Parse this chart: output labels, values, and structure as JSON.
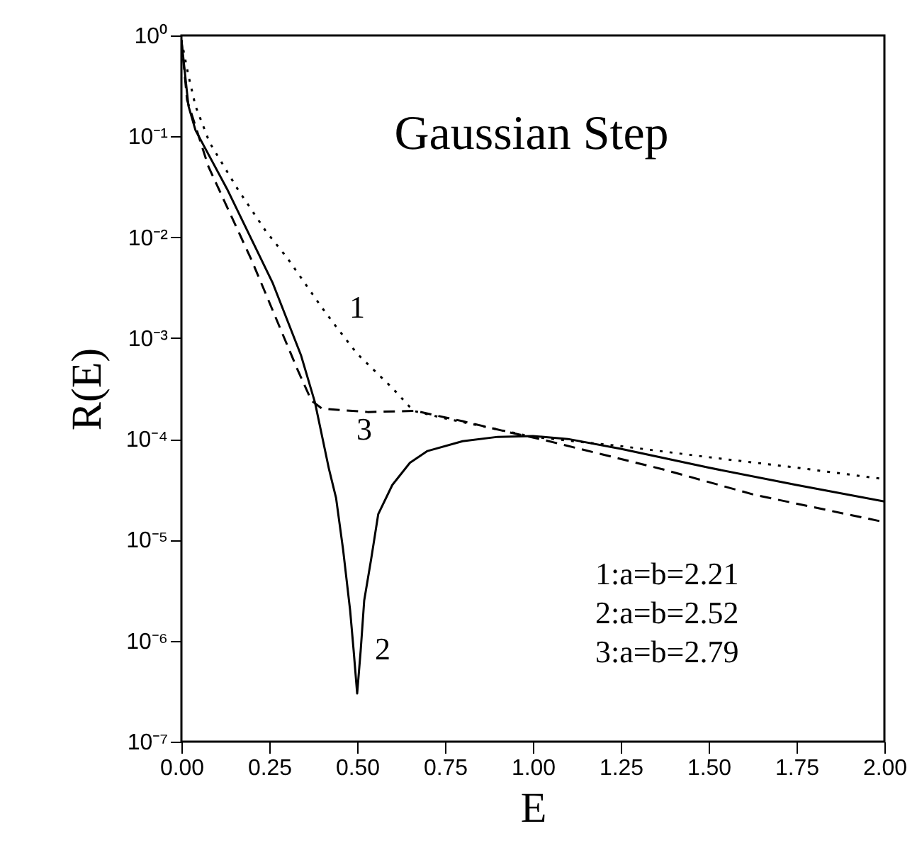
{
  "chart_data": {
    "type": "line",
    "title": "Gaussian Step",
    "xlabel": "E",
    "ylabel": "R(E)",
    "log": "y",
    "xlim": [
      0,
      2
    ],
    "xticks": [
      {
        "value": 0,
        "label": "0.00"
      },
      {
        "value": 0.25,
        "label": "0.25"
      },
      {
        "value": 0.5,
        "label": "0.50"
      },
      {
        "value": 0.75,
        "label": "0.75"
      },
      {
        "value": 1,
        "label": "1.00"
      },
      {
        "value": 1.25,
        "label": "1.25"
      },
      {
        "value": 1.5,
        "label": "1.50"
      },
      {
        "value": 1.75,
        "label": "1.75"
      },
      {
        "value": 2,
        "label": "2.00"
      }
    ],
    "ylim": [
      1e-07,
      1
    ],
    "yticks": [
      {
        "value": 1e-07,
        "label": "10⁻⁷"
      },
      {
        "value": 1e-06,
        "label": "10⁻⁶"
      },
      {
        "value": 1e-05,
        "label": "10⁻⁵"
      },
      {
        "value": 0.0001,
        "label": "10⁻⁴"
      },
      {
        "value": 0.001,
        "label": "10⁻³"
      },
      {
        "value": 0.01,
        "label": "10⁻²"
      },
      {
        "value": 0.1,
        "label": "10⁻¹"
      },
      {
        "value": 1,
        "label": "10⁰"
      }
    ],
    "grid": false,
    "marker": "none",
    "series": [
      {
        "color": "#000000",
        "line_style": "dotted",
        "x": [
          0,
          0.02,
          0.04,
          0.08,
          0.16,
          0.24,
          0.3,
          0.4,
          0.44,
          0.5,
          0.6,
          0.66,
          0.75,
          1,
          1.25,
          1.5,
          1.75,
          2
        ],
        "values": [
          0.9,
          0.4,
          0.2,
          0.087,
          0.03,
          0.0115,
          0.0063,
          0.002,
          0.0013,
          0.0007,
          0.00032,
          0.00019,
          0.00016,
          0.000105,
          8.5e-05,
          6.6e-05,
          5.2e-05,
          4e-05
        ]
      },
      {
        "color": "#000000",
        "line_style": "solid",
        "x": [
          0,
          0.02,
          0.04,
          0.13,
          0.26,
          0.34,
          0.38,
          0.42,
          0.44,
          0.46,
          0.48,
          0.49,
          0.5,
          0.51,
          0.52,
          0.54,
          0.56,
          0.6,
          0.65,
          0.7,
          0.8,
          0.9,
          1,
          1.1,
          1.25,
          1.5,
          1.75,
          2
        ],
        "values": [
          0.9,
          0.2,
          0.115,
          0.03,
          0.0035,
          0.00068,
          0.00023,
          5e-05,
          2.6e-05,
          8e-06,
          2e-06,
          8e-07,
          3e-07,
          8e-07,
          2.5e-06,
          6.5e-06,
          1.8e-05,
          3.5e-05,
          5.8e-05,
          7.6e-05,
          9.5e-05,
          0.000105,
          0.000107,
          0.0001,
          8e-05,
          5.2e-05,
          3.5e-05,
          2.4e-05
        ]
      },
      {
        "color": "#000000",
        "line_style": "dashed",
        "x": [
          0,
          0.016,
          0.077,
          0.2,
          0.33,
          0.37,
          0.4,
          0.53,
          0.665,
          0.8,
          0.94,
          1.03,
          1.37,
          1.63,
          2
        ],
        "values": [
          0.9,
          0.23,
          0.05,
          0.0059,
          0.00049,
          0.00024,
          0.0002,
          0.000185,
          0.00019,
          0.00015,
          0.000115,
          9.8e-05,
          5e-05,
          2.8e-05,
          1.5e-05
        ]
      }
    ],
    "annotations": [
      "1",
      "2",
      "3",
      "1:a=b=2.21",
      "2:a=b=2.52",
      "3:a=b=2.79"
    ]
  }
}
